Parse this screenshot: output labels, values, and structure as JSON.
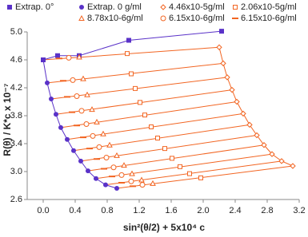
{
  "chart_data": {
    "type": "zimm",
    "xlabel": "sin²(θ/2) + 5x10⁴ c",
    "ylabel": "R(θ) / K*c x 10⁻⁷",
    "xlim": [
      -0.2,
      3.2
    ],
    "ylim": [
      2.6,
      5.0
    ],
    "xticks": [
      {
        "value": 0,
        "label": "0.0"
      },
      0.4,
      0.8,
      1.2,
      1.6,
      {
        "value": 2,
        "label": "2.0"
      },
      2.4,
      2.8,
      3.2
    ],
    "yticks": [
      2.6,
      {
        "value": 3,
        "label": "3.0"
      },
      3.4,
      3.8,
      4.2,
      4.6,
      {
        "value": 5,
        "label": "5.0"
      }
    ],
    "series": [
      {
        "name": "Extrap. 0°",
        "color": "#5a32c8",
        "marker": "square",
        "x": [
          0.0,
          0.18,
          0.45,
          1.07,
          2.23
        ],
        "values": [
          4.6,
          4.66,
          4.66,
          4.88,
          5.01
        ]
      },
      {
        "name": "Extrap. 0 g/ml",
        "color": "#5a32c8",
        "marker": "circle",
        "x": [
          0.0,
          0.05,
          0.1,
          0.16,
          0.22,
          0.3,
          0.38,
          0.47,
          0.56,
          0.66,
          0.78,
          0.92
        ],
        "values": [
          4.6,
          4.27,
          4.04,
          3.82,
          3.63,
          3.46,
          3.3,
          3.15,
          3.01,
          2.9,
          2.81,
          2.76
        ]
      },
      {
        "name": "4.46x10-5g/ml",
        "color": "#f26522",
        "marker": "diamond",
        "x": [
          2.2,
          2.25,
          2.3,
          2.36,
          2.42,
          2.5,
          2.58,
          2.67,
          2.76,
          2.86,
          2.98,
          3.12
        ],
        "values": [
          4.78,
          4.55,
          4.35,
          4.17,
          4.0,
          3.83,
          3.67,
          3.52,
          3.38,
          3.25,
          3.15,
          3.08
        ]
      },
      {
        "name": "2.06x10-5g/ml",
        "color": "#f26522",
        "marker": "square-open",
        "x": [
          1.05,
          1.1,
          1.15,
          1.21,
          1.27,
          1.35,
          1.43,
          1.52,
          1.61,
          1.71,
          1.83,
          1.97
        ],
        "values": [
          4.69,
          4.4,
          4.19,
          3.99,
          3.81,
          3.64,
          3.48,
          3.33,
          3.19,
          3.07,
          2.97,
          2.91
        ]
      },
      {
        "name": "8.78x10-6g/ml",
        "color": "#f26522",
        "marker": "triangle",
        "x": [
          0.45,
          0.5,
          0.55,
          0.61,
          0.67,
          0.75,
          0.83,
          0.92,
          1.01,
          1.11,
          1.23,
          1.37
        ],
        "values": [
          4.64,
          4.33,
          4.1,
          3.89,
          3.71,
          3.54,
          3.38,
          3.23,
          3.09,
          2.97,
          2.88,
          2.83
        ]
      },
      {
        "name": "6.15x10-6g/ml",
        "color": "#f26522",
        "marker": "circle-open",
        "x": [
          0.32,
          0.37,
          0.42,
          0.48,
          0.54,
          0.62,
          0.7,
          0.79,
          0.88,
          0.98,
          1.1,
          1.24
        ],
        "values": [
          4.63,
          4.31,
          4.08,
          3.87,
          3.68,
          3.51,
          3.35,
          3.2,
          3.06,
          2.95,
          2.86,
          2.81
        ]
      },
      {
        "name": "6.15x10-6g/ml",
        "color": "#f26522",
        "marker": "dash",
        "x": [
          0.2,
          0.25,
          0.3,
          0.36,
          0.42,
          0.5,
          0.58,
          0.67,
          0.76,
          0.86,
          0.98,
          1.12
        ],
        "values": [
          4.62,
          4.3,
          4.07,
          3.85,
          3.66,
          3.49,
          3.33,
          3.18,
          3.04,
          2.93,
          2.84,
          2.79
        ]
      }
    ]
  }
}
